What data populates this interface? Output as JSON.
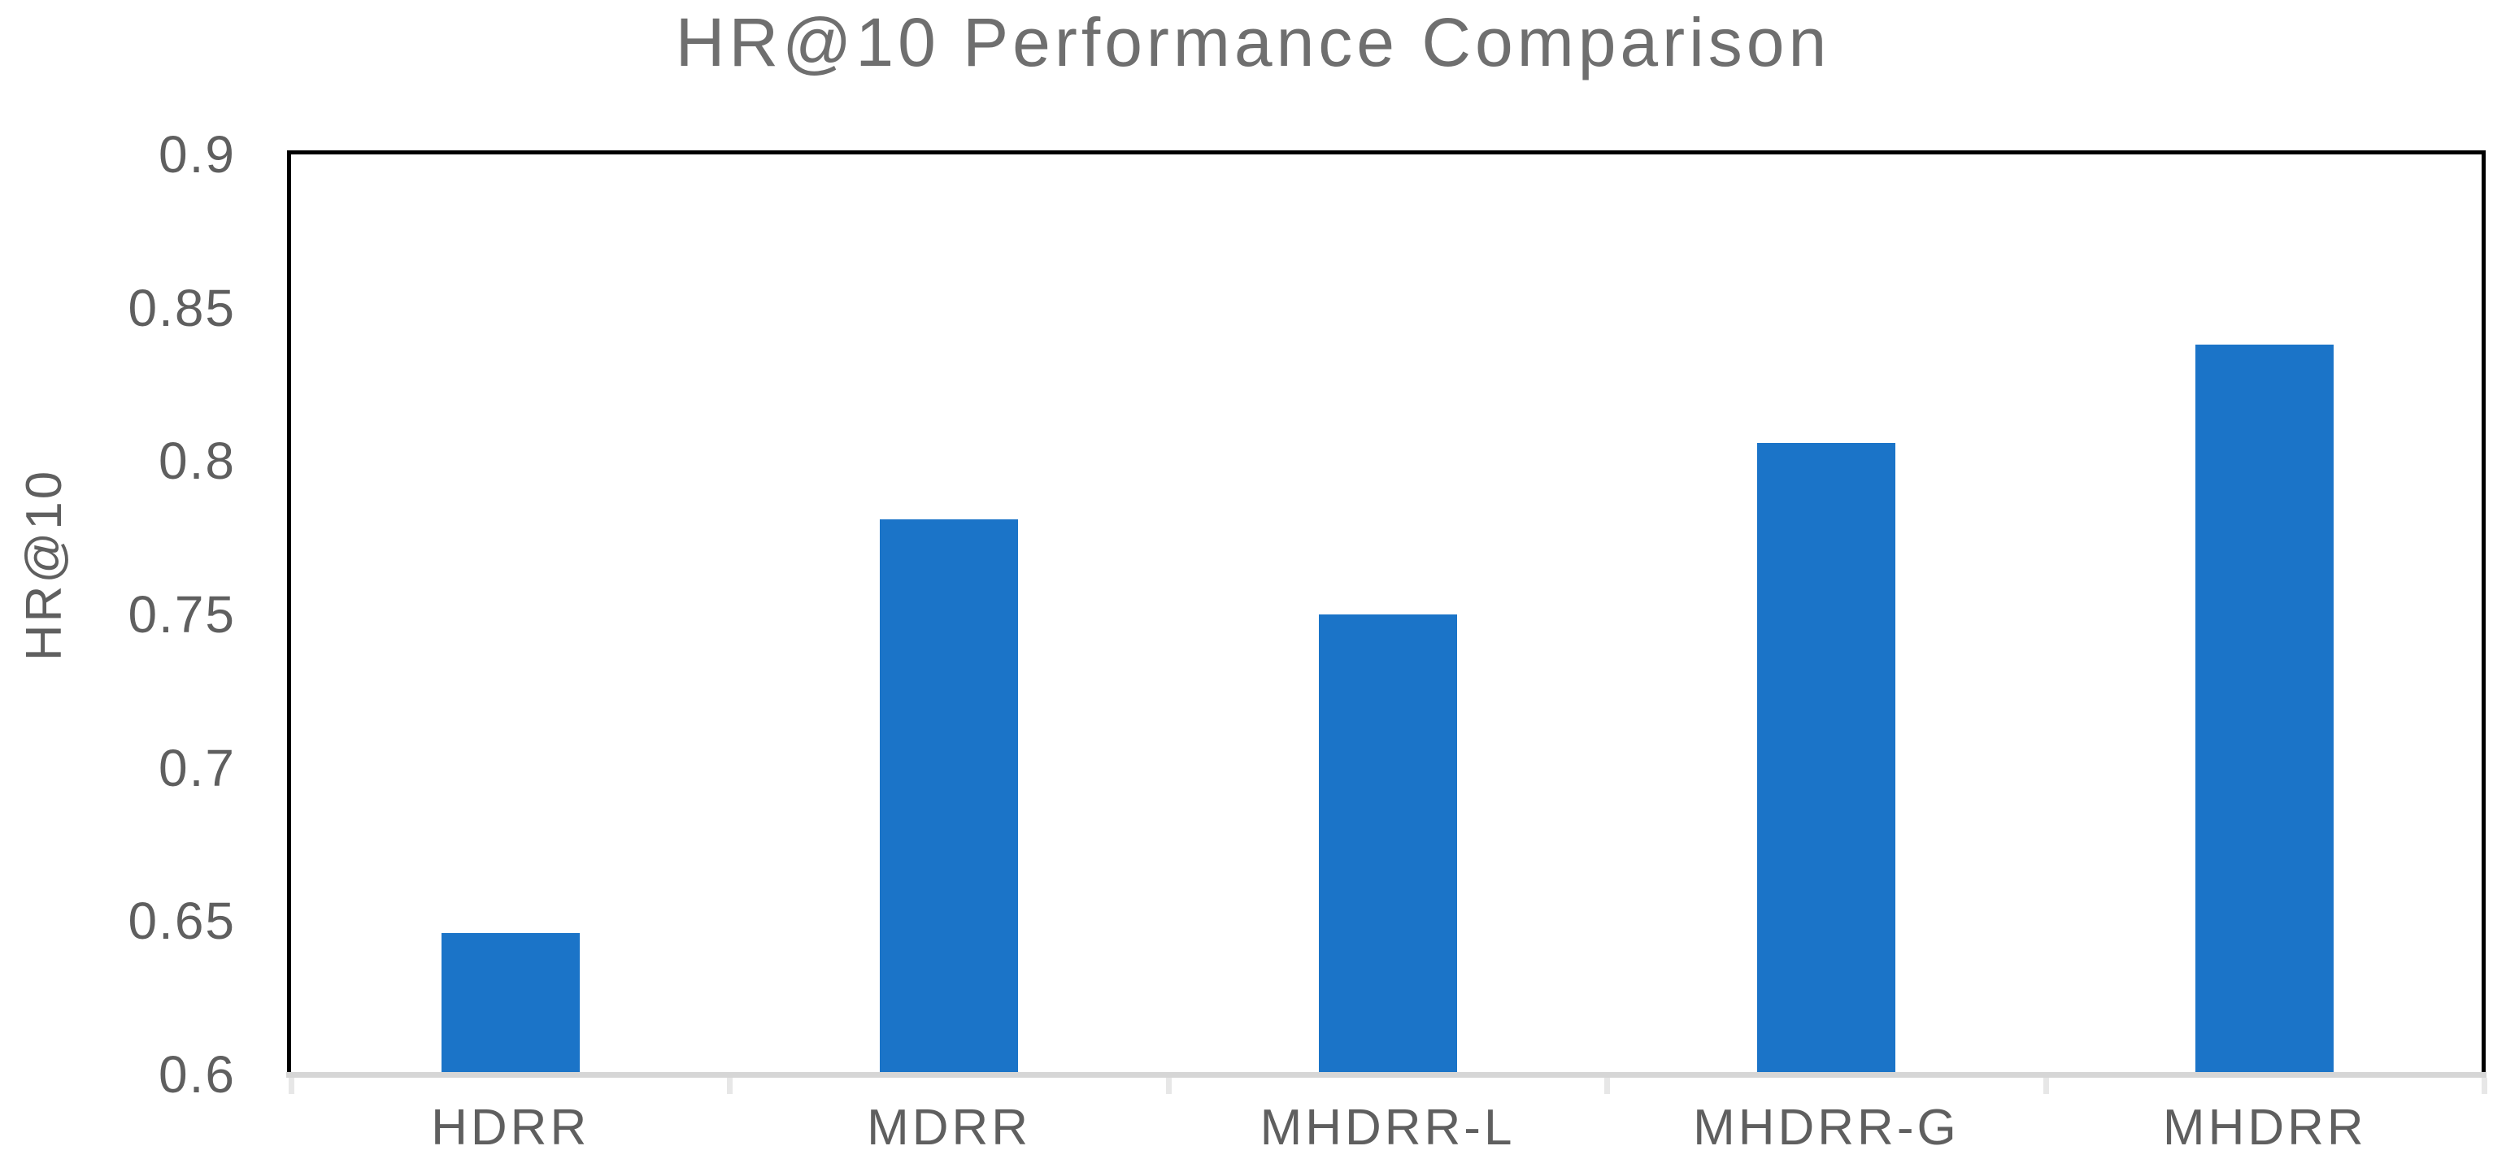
{
  "chart_data": {
    "type": "bar",
    "title": "HR@10 Performance Comparison",
    "ylabel": "HR@10",
    "xlabel": "",
    "categories": [
      "HDRR",
      "MDRR",
      "MHDRR-L",
      "MHDRR-G",
      "MHDRR"
    ],
    "values": [
      0.646,
      0.781,
      0.75,
      0.806,
      0.838
    ],
    "ylim": [
      0.6,
      0.9
    ],
    "ytick_labels": [
      "0.6",
      "0.65",
      "0.7",
      "0.75",
      "0.8",
      "0.85",
      "0.9"
    ],
    "grid": false,
    "legend": "none",
    "bar_color": "#1B74C8",
    "colors": {
      "title_text": "#6f6f6f",
      "axis_text": "#5f5f5f",
      "plot_border": "#000000",
      "x_axis_line": "#d6d6d6",
      "x_tick_mark": "#e7e7e7",
      "background": "#ffffff"
    }
  }
}
